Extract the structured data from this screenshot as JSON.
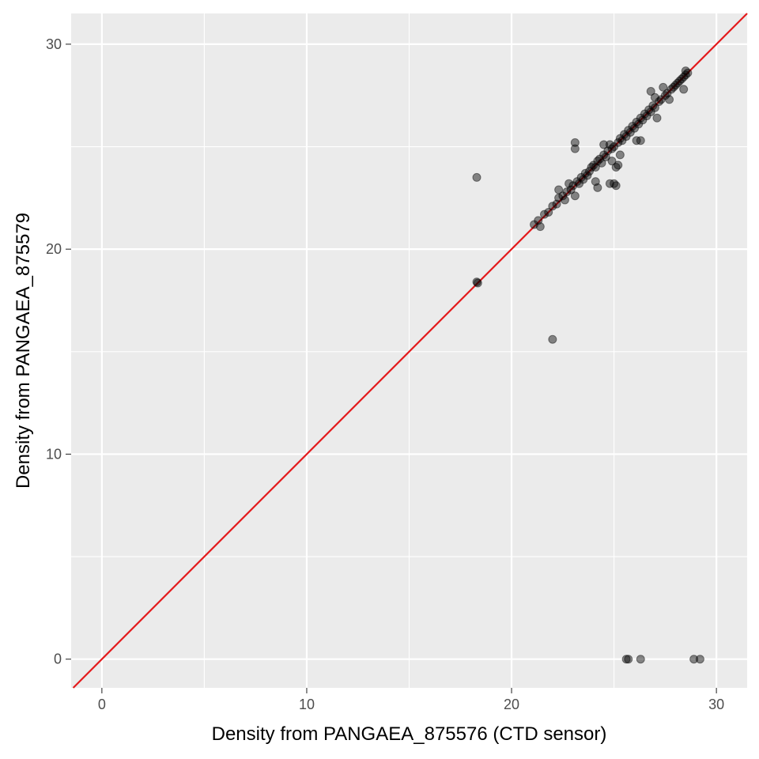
{
  "chart_data": {
    "type": "scatter",
    "title": "",
    "xlabel": "Density from PANGAEA_875576 (CTD sensor)",
    "ylabel": "Density from PANGAEA_875579",
    "xlim": [
      -1.5,
      31.5
    ],
    "ylim": [
      -1.4,
      31.5
    ],
    "x_ticks": [
      0,
      10,
      20,
      30
    ],
    "y_ticks": [
      0,
      10,
      20,
      30
    ],
    "grid": true,
    "panel_background": "#ebebeb",
    "grid_color": "#ffffff",
    "point_color": "#000000",
    "point_alpha": 0.45,
    "reference_line": {
      "type": "identity",
      "slope": 1,
      "intercept": 0,
      "color": "#e41a1c"
    },
    "points": [
      {
        "x": 18.3,
        "y": 18.4
      },
      {
        "x": 18.35,
        "y": 18.35
      },
      {
        "x": 18.3,
        "y": 23.5
      },
      {
        "x": 22.0,
        "y": 15.6
      },
      {
        "x": 25.6,
        "y": 0.0
      },
      {
        "x": 25.7,
        "y": 0.0
      },
      {
        "x": 26.3,
        "y": 0.0
      },
      {
        "x": 28.9,
        "y": 0.0
      },
      {
        "x": 29.2,
        "y": 0.0
      },
      {
        "x": 21.1,
        "y": 21.2
      },
      {
        "x": 21.3,
        "y": 21.4
      },
      {
        "x": 21.4,
        "y": 21.1
      },
      {
        "x": 21.6,
        "y": 21.7
      },
      {
        "x": 21.8,
        "y": 21.8
      },
      {
        "x": 22.0,
        "y": 22.1
      },
      {
        "x": 22.2,
        "y": 22.2
      },
      {
        "x": 22.3,
        "y": 22.5
      },
      {
        "x": 22.3,
        "y": 22.9
      },
      {
        "x": 22.5,
        "y": 22.6
      },
      {
        "x": 22.6,
        "y": 22.4
      },
      {
        "x": 22.7,
        "y": 22.8
      },
      {
        "x": 22.8,
        "y": 23.2
      },
      {
        "x": 22.9,
        "y": 22.9
      },
      {
        "x": 23.0,
        "y": 23.1
      },
      {
        "x": 23.1,
        "y": 22.6
      },
      {
        "x": 23.1,
        "y": 24.9
      },
      {
        "x": 23.1,
        "y": 25.2
      },
      {
        "x": 23.2,
        "y": 23.3
      },
      {
        "x": 23.3,
        "y": 23.2
      },
      {
        "x": 23.4,
        "y": 23.5
      },
      {
        "x": 23.5,
        "y": 23.4
      },
      {
        "x": 23.6,
        "y": 23.7
      },
      {
        "x": 23.7,
        "y": 23.6
      },
      {
        "x": 23.8,
        "y": 23.8
      },
      {
        "x": 23.9,
        "y": 24.0
      },
      {
        "x": 24.0,
        "y": 24.1
      },
      {
        "x": 24.1,
        "y": 24.0
      },
      {
        "x": 24.1,
        "y": 23.3
      },
      {
        "x": 24.2,
        "y": 23.0
      },
      {
        "x": 24.2,
        "y": 24.3
      },
      {
        "x": 24.3,
        "y": 24.4
      },
      {
        "x": 24.4,
        "y": 24.2
      },
      {
        "x": 24.5,
        "y": 24.6
      },
      {
        "x": 24.5,
        "y": 25.1
      },
      {
        "x": 24.6,
        "y": 24.5
      },
      {
        "x": 24.7,
        "y": 24.8
      },
      {
        "x": 24.8,
        "y": 25.1
      },
      {
        "x": 24.8,
        "y": 23.2
      },
      {
        "x": 24.9,
        "y": 24.9
      },
      {
        "x": 24.9,
        "y": 24.3
      },
      {
        "x": 25.0,
        "y": 23.2
      },
      {
        "x": 25.0,
        "y": 25.0
      },
      {
        "x": 25.1,
        "y": 24.0
      },
      {
        "x": 25.1,
        "y": 23.1
      },
      {
        "x": 25.2,
        "y": 25.2
      },
      {
        "x": 25.2,
        "y": 24.1
      },
      {
        "x": 25.3,
        "y": 25.4
      },
      {
        "x": 25.3,
        "y": 24.6
      },
      {
        "x": 25.4,
        "y": 25.3
      },
      {
        "x": 25.5,
        "y": 25.6
      },
      {
        "x": 25.6,
        "y": 25.5
      },
      {
        "x": 25.7,
        "y": 25.8
      },
      {
        "x": 25.8,
        "y": 25.7
      },
      {
        "x": 25.9,
        "y": 26.0
      },
      {
        "x": 26.0,
        "y": 25.9
      },
      {
        "x": 26.1,
        "y": 25.3
      },
      {
        "x": 26.1,
        "y": 26.2
      },
      {
        "x": 26.2,
        "y": 26.1
      },
      {
        "x": 26.3,
        "y": 25.3
      },
      {
        "x": 26.3,
        "y": 26.4
      },
      {
        "x": 26.4,
        "y": 26.3
      },
      {
        "x": 26.5,
        "y": 26.6
      },
      {
        "x": 26.6,
        "y": 26.5
      },
      {
        "x": 26.7,
        "y": 26.8
      },
      {
        "x": 26.8,
        "y": 26.7
      },
      {
        "x": 26.8,
        "y": 27.7
      },
      {
        "x": 26.9,
        "y": 27.0
      },
      {
        "x": 27.0,
        "y": 26.9
      },
      {
        "x": 27.0,
        "y": 27.4
      },
      {
        "x": 27.1,
        "y": 26.4
      },
      {
        "x": 27.2,
        "y": 27.2
      },
      {
        "x": 27.3,
        "y": 27.3
      },
      {
        "x": 27.4,
        "y": 27.9
      },
      {
        "x": 27.5,
        "y": 27.5
      },
      {
        "x": 27.6,
        "y": 27.6
      },
      {
        "x": 27.7,
        "y": 27.3
      },
      {
        "x": 27.8,
        "y": 27.8
      },
      {
        "x": 27.9,
        "y": 27.9
      },
      {
        "x": 28.0,
        "y": 28.0
      },
      {
        "x": 28.1,
        "y": 28.1
      },
      {
        "x": 28.2,
        "y": 28.2
      },
      {
        "x": 28.3,
        "y": 28.3
      },
      {
        "x": 28.4,
        "y": 27.8
      },
      {
        "x": 28.4,
        "y": 28.4
      },
      {
        "x": 28.5,
        "y": 28.5
      },
      {
        "x": 28.5,
        "y": 28.7
      },
      {
        "x": 28.6,
        "y": 28.6
      }
    ]
  }
}
